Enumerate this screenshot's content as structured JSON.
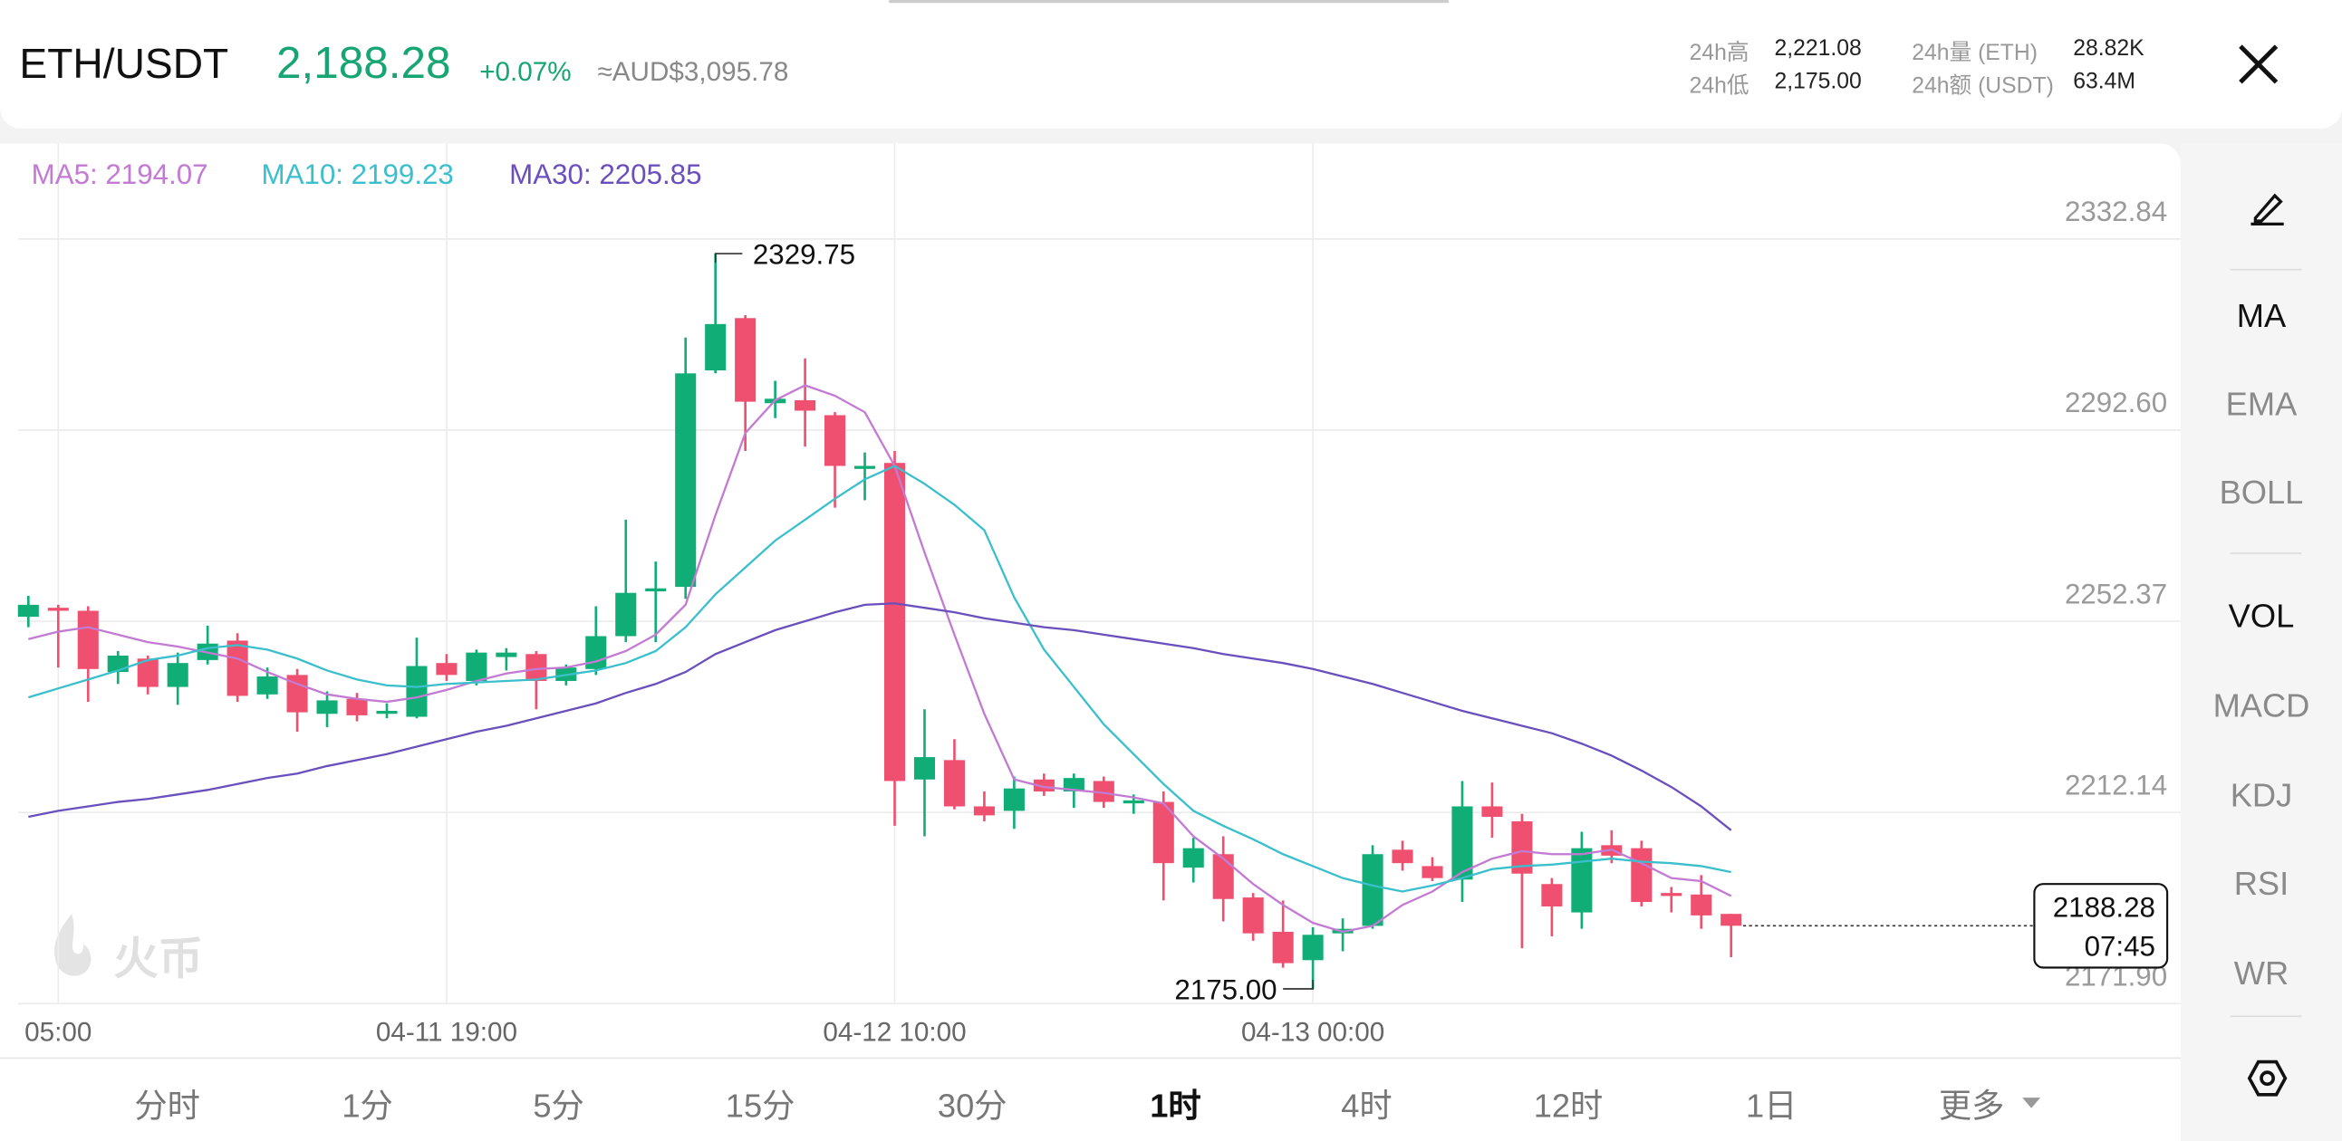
{
  "header": {
    "pair": "ETH/USDT",
    "price": "2,188.28",
    "change": "+0.07%",
    "fiat": "≈AUD$3,095.78",
    "stats": [
      {
        "label": "24h高",
        "value": "2,221.08"
      },
      {
        "label": "24h低",
        "value": "2,175.00"
      },
      {
        "label": "24h量 (ETH)",
        "value": "28.82K"
      },
      {
        "label": "24h额 (USDT)",
        "value": "63.4M"
      }
    ]
  },
  "chart_data": {
    "type": "candlestick",
    "categories": [
      null,
      "05:00",
      null,
      null,
      null,
      null,
      null,
      null,
      null,
      null,
      null,
      null,
      null,
      null,
      "04-11 19:00",
      null,
      null,
      null,
      null,
      null,
      null,
      null,
      null,
      null,
      null,
      null,
      null,
      null,
      null,
      "04-12 10:00",
      null,
      null,
      null,
      null,
      null,
      null,
      null,
      null,
      null,
      null,
      null,
      null,
      null,
      "04-13 00:00",
      null,
      null,
      null,
      null,
      null,
      null,
      null,
      null,
      null,
      null,
      null,
      null,
      null,
      null
    ],
    "open": [
      2253.32,
      2255.21,
      2254.58,
      2241.69,
      2244.52,
      2238.55,
      2244.21,
      2248.3,
      2236.98,
      2241.07,
      2232.89,
      2236.04,
      2232.89,
      2232.27,
      2243.58,
      2239.81,
      2244.84,
      2245.47,
      2239.81,
      2242.32,
      2249.24,
      2258.67,
      2259.61,
      2305.18,
      2316.18,
      2298.27,
      2298.9,
      2295.75,
      2284.44,
      2285.7,
      2219.07,
      2223.15,
      2213.41,
      2212.47,
      2219.07,
      2216.55,
      2218.75,
      2214.04,
      2214.35,
      2200.52,
      2203.35,
      2194.24,
      2187.01,
      2181.04,
      2186.69,
      2188.26,
      2204.29,
      2200.84,
      2198.01,
      2213.41,
      2210.26,
      2197.06,
      2191.09,
      2205.24,
      2204.61,
      2195.18,
      2194.86,
      2190.78
    ],
    "high": [
      2257.72,
      2255.84,
      2255.52,
      2246.1,
      2245.15,
      2245.78,
      2251.44,
      2249.87,
      2242.64,
      2242.32,
      2237.61,
      2237.29,
      2235.09,
      2248.92,
      2245.47,
      2246.41,
      2246.72,
      2246.1,
      2243.27,
      2255.52,
      2273.75,
      2264.95,
      2312.1,
      2329.75,
      2316.81,
      2302.98,
      2307.7,
      2296.38,
      2287.9,
      2288.21,
      2233.84,
      2227.55,
      2216.55,
      2219.69,
      2220.32,
      2220.32,
      2219.69,
      2215.92,
      2216.55,
      2206.81,
      2207.12,
      2195.18,
      2193.61,
      2187.95,
      2189.84,
      2205.24,
      2206.18,
      2202.72,
      2218.75,
      2218.44,
      2211.84,
      2198.32,
      2208.06,
      2208.38,
      2206.18,
      2196.44,
      2198.95,
      2190.78
    ],
    "low": [
      2251.12,
      2242.64,
      2235.41,
      2239.18,
      2236.98,
      2234.78,
      2243.27,
      2235.41,
      2236.04,
      2229.12,
      2230.07,
      2231.32,
      2231.95,
      2231.95,
      2239.81,
      2238.87,
      2242.01,
      2233.84,
      2238.87,
      2241.07,
      2247.98,
      2247.98,
      2257.1,
      2304.55,
      2288.21,
      2295.13,
      2289.15,
      2276.27,
      2277.84,
      2209.32,
      2207.12,
      2212.78,
      2210.26,
      2208.69,
      2215.61,
      2213.09,
      2213.09,
      2211.84,
      2193.61,
      2197.38,
      2189.21,
      2185.12,
      2179.46,
      2175.0,
      2182.92,
      2187.64,
      2199.89,
      2197.69,
      2193.29,
      2206.81,
      2183.55,
      2186.06,
      2187.64,
      2201.46,
      2192.35,
      2191.09,
      2187.64,
      2181.66
    ],
    "close": [
      2255.84,
      2254.58,
      2242.32,
      2245.15,
      2238.55,
      2243.58,
      2247.67,
      2236.67,
      2240.75,
      2233.21,
      2235.72,
      2232.58,
      2233.52,
      2242.95,
      2241.07,
      2245.78,
      2245.78,
      2239.81,
      2242.64,
      2249.24,
      2258.35,
      2259.3,
      2304.55,
      2314.93,
      2298.58,
      2299.21,
      2296.7,
      2285.07,
      2285.07,
      2218.75,
      2223.78,
      2213.41,
      2211.52,
      2217.18,
      2216.55,
      2219.38,
      2214.35,
      2214.67,
      2201.46,
      2204.61,
      2193.92,
      2186.69,
      2180.41,
      2186.38,
      2187.64,
      2203.35,
      2201.46,
      2198.32,
      2213.41,
      2211.21,
      2199.26,
      2192.35,
      2204.61,
      2203.04,
      2193.29,
      2194.55,
      2190.46,
      2188.28
    ],
    "up_color": "#10ad77",
    "down_color": "#f0506f",
    "series": [
      {
        "name": "MA5: 2194.07",
        "color": "#c37ad3",
        "values": [
          2248.61,
          2250.18,
          2251.12,
          2249.55,
          2247.98,
          2247.04,
          2245.78,
          2244.52,
          2241.69,
          2239.18,
          2236.98,
          2236.04,
          2235.41,
          2236.35,
          2237.92,
          2239.81,
          2241.38,
          2242.32,
          2242.64,
          2243.9,
          2246.1,
          2249.55,
          2255.84,
          2274.7,
          2291.98,
          2298.9,
          2302.04,
          2299.84,
          2296.38,
          2285.07,
          2266.84,
          2249.55,
          2232.89,
          2219.07,
          2217.49,
          2216.87,
          2216.24,
          2215.29,
          2214.04,
          2207.12,
          2202.41,
          2197.06,
          2192.66,
          2188.89,
          2187.01,
          2188.26,
          2192.66,
          2195.49,
          2199.58,
          2202.41,
          2203.98,
          2203.35,
          2203.35,
          2204.29,
          2201.46,
          2198.32,
          2197.69,
          2194.55
        ]
      },
      {
        "name": "MA10: 2199.23",
        "color": "#3bbfcc",
        "values": [
          2236.35,
          2238.24,
          2240.12,
          2242.01,
          2244.21,
          2245.15,
          2246.72,
          2247.35,
          2246.41,
          2244.52,
          2242.01,
          2240.12,
          2238.87,
          2238.55,
          2239.18,
          2239.49,
          2239.81,
          2240.12,
          2241.07,
          2242.01,
          2243.58,
          2246.1,
          2251.12,
          2258.04,
          2263.7,
          2269.35,
          2273.75,
          2278.15,
          2282.24,
          2285.07,
          2281.3,
          2276.9,
          2271.55,
          2257.41,
          2246.41,
          2238.55,
          2230.69,
          2224.41,
          2218.12,
          2212.47,
          2209.32,
          2206.49,
          2203.35,
          2200.84,
          2198.32,
          2196.75,
          2195.49,
          2196.75,
          2198.32,
          2200.21,
          2200.84,
          2201.15,
          2201.78,
          2202.41,
          2201.78,
          2201.46,
          2200.84,
          2199.58
        ]
      },
      {
        "name": "MA30: 2205.85",
        "color": "#6a4fbd",
        "values": [
          2211.21,
          2212.47,
          2213.41,
          2214.35,
          2214.98,
          2215.92,
          2216.87,
          2218.12,
          2219.38,
          2220.32,
          2221.9,
          2223.15,
          2224.41,
          2225.98,
          2227.55,
          2229.12,
          2230.38,
          2231.95,
          2233.52,
          2235.09,
          2237.29,
          2239.18,
          2241.69,
          2245.47,
          2247.98,
          2250.5,
          2252.38,
          2254.27,
          2255.84,
          2256.15,
          2255.21,
          2254.27,
          2253.01,
          2252.07,
          2251.12,
          2250.5,
          2249.55,
          2248.61,
          2247.67,
          2246.72,
          2245.47,
          2244.52,
          2243.58,
          2242.32,
          2240.75,
          2239.18,
          2237.29,
          2235.41,
          2233.52,
          2231.95,
          2230.38,
          2228.81,
          2226.61,
          2224.09,
          2220.95,
          2217.49,
          2213.41,
          2208.38
        ]
      }
    ],
    "ylim": [
      2171.9,
      2352.96
    ],
    "yticks": [
      {
        "value": 2171.9,
        "label": "2171.90"
      },
      2212.14,
      2252.37,
      {
        "value": 2292.6,
        "label": "2292.60"
      },
      2332.84
    ],
    "grid": true,
    "low_label": "2175.00",
    "countdown": "07:45"
  },
  "side_menu": {
    "items": [
      "MA",
      "EMA",
      "BOLL",
      "VOL",
      "MACD",
      "KDJ",
      "RSI",
      "WR"
    ],
    "active": [
      0,
      3
    ]
  },
  "intervals": {
    "items": [
      "分时",
      "1分",
      "5分",
      "15分",
      "30分",
      "1时",
      "4时",
      "12时",
      "1日",
      "更多"
    ],
    "active": 5
  },
  "watermark": "火币"
}
